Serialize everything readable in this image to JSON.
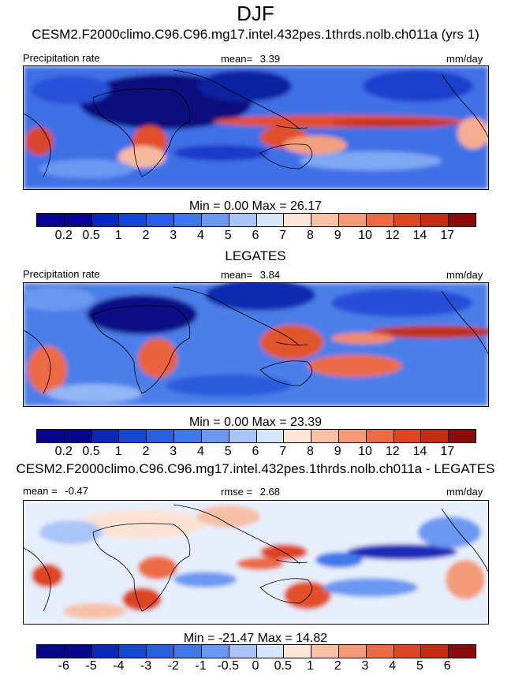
{
  "figure": {
    "season": "DJF",
    "model_title": "CESM2.F2000climo.C96.C96.mg17.intel.432pes.1thrds.nolb.ch011a (yrs 1)",
    "obs_title": "LEGATES",
    "diff_title": "CESM2.F2000climo.C96.C96.mg17.intel.432pes.1thrds.nolb.ch011a - LEGATES"
  },
  "panels": [
    {
      "variable": "Precipitation rate",
      "stat_label": "mean=",
      "stat_value": "3.39",
      "units": "mm/day",
      "minmax": "Min =   0.00 Max =  26.17"
    },
    {
      "variable": "Precipitation rate",
      "stat_label": "mean=",
      "stat_value": "3.84",
      "units": "mm/day",
      "minmax": "Min =   0.00 Max =  23.39"
    },
    {
      "mean_label": "mean =",
      "mean_value": "-0.47",
      "rmse_label": "rmse =",
      "rmse_value": "2.68",
      "units": "mm/day",
      "minmax": "Min = -21.47 Max =  14.82"
    }
  ],
  "colorbars": {
    "abs_levels": [
      "0.2",
      "0.5",
      "1",
      "2",
      "3",
      "4",
      "5",
      "6",
      "7",
      "8",
      "9",
      "10",
      "12",
      "14",
      "17"
    ],
    "diff_levels": [
      "-6",
      "-5",
      "-4",
      "-3",
      "-2",
      "-1",
      "-0.5",
      "0",
      "0.5",
      "1",
      "2",
      "3",
      "4",
      "5",
      "6"
    ],
    "palette": [
      "#08068c",
      "#0b29b8",
      "#1448d0",
      "#2a60e0",
      "#3f78ea",
      "#6b98f0",
      "#a9c4f6",
      "#d8e6fb",
      "#fde6d8",
      "#f8c1a6",
      "#f39a78",
      "#ec6b45",
      "#de4522",
      "#c42c14",
      "#8b0a0a"
    ]
  }
}
